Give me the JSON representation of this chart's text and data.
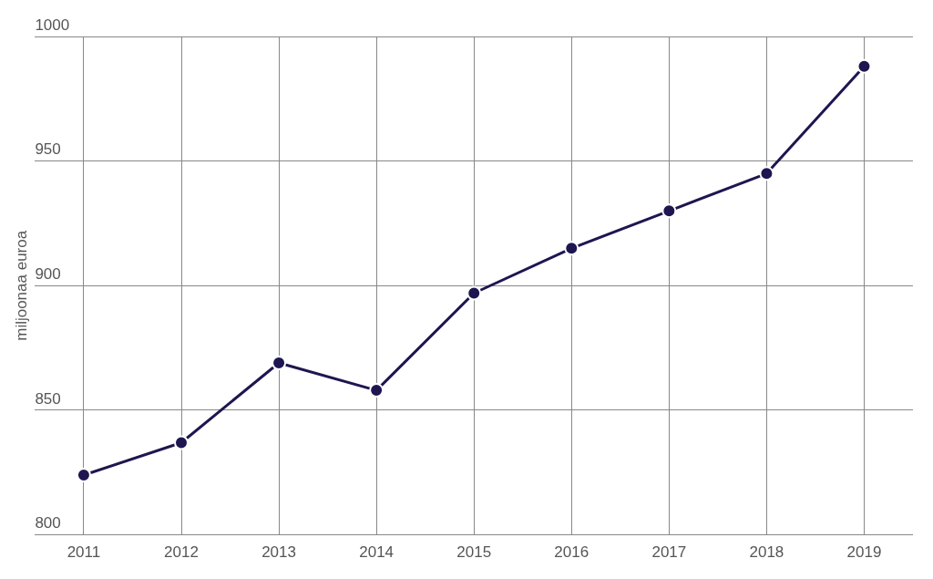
{
  "chart_data": {
    "type": "line",
    "ylabel": "miljoonaa euroa",
    "categories": [
      "2011",
      "2012",
      "2013",
      "2014",
      "2015",
      "2016",
      "2017",
      "2018",
      "2019"
    ],
    "series": [
      {
        "color": "#1e1650",
        "values": [
          824,
          837,
          869,
          858,
          897,
          915,
          930,
          945,
          988
        ]
      }
    ],
    "ylim": [
      800,
      1000
    ],
    "yticks": [
      800,
      850,
      900,
      950,
      1000
    ],
    "grid": true,
    "legend": false,
    "marker": "circle",
    "line_style": "solid"
  }
}
